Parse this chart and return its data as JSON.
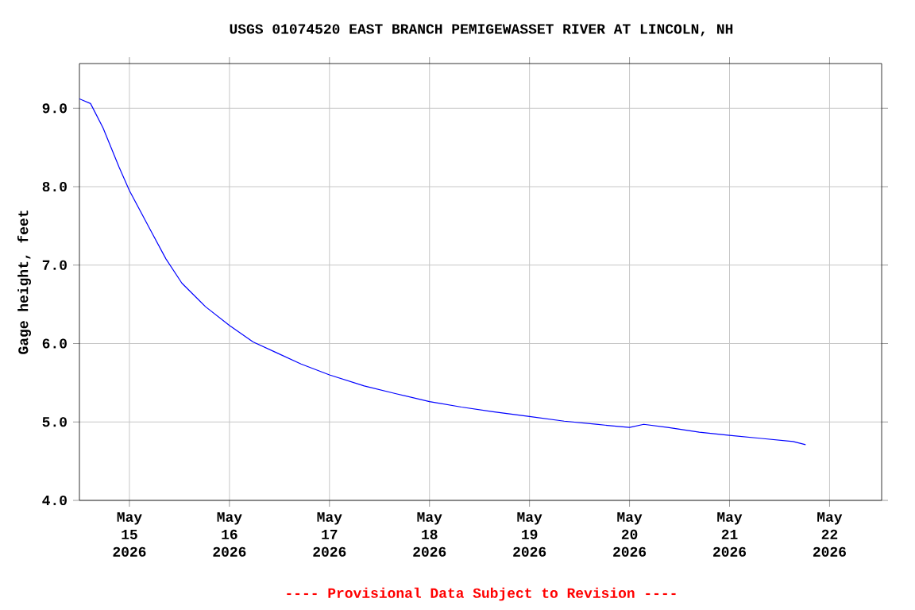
{
  "chart_data": {
    "type": "line",
    "title": "USGS 01074520 EAST BRANCH PEMIGEWASSET RIVER AT LINCOLN, NH",
    "ylabel": "Gage height, feet",
    "annotations": [
      "---- Provisional Data Subject to Revision ----"
    ],
    "xlim": [
      "2026-05-14T12:00",
      "2026-05-22T12:30"
    ],
    "ylim": [
      4.0,
      9.57
    ],
    "xticks": [
      {
        "value": "2026-05-15",
        "label": "May 15 2026"
      },
      {
        "value": "2026-05-16",
        "label": "May 16 2026"
      },
      {
        "value": "2026-05-17",
        "label": "May 17 2026"
      },
      {
        "value": "2026-05-18",
        "label": "May 18 2026"
      },
      {
        "value": "2026-05-19",
        "label": "May 19 2026"
      },
      {
        "value": "2026-05-20",
        "label": "May 20 2026"
      },
      {
        "value": "2026-05-21",
        "label": "May 21 2026"
      },
      {
        "value": "2026-05-22",
        "label": "May 22 2026"
      }
    ],
    "yticks": [
      {
        "value": 4,
        "label": "4.0"
      },
      {
        "value": 5,
        "label": "5.0"
      },
      {
        "value": 6,
        "label": "6.0"
      },
      {
        "value": 7,
        "label": "7.0"
      },
      {
        "value": 8,
        "label": "8.0"
      },
      {
        "value": 9,
        "label": "9.0"
      }
    ],
    "grid": true,
    "line_style": "solid",
    "marker": "none",
    "series": [
      {
        "color": "#0000ff",
        "x": [
          "2026-05-14T12:00",
          "2026-05-14T14:40",
          "2026-05-14T17:40",
          "2026-05-14T21:30",
          "2026-05-15T00:00",
          "2026-05-15T05:00",
          "2026-05-15T08:45",
          "2026-05-15T12:35",
          "2026-05-15T18:15",
          "2026-05-16T00:00",
          "2026-05-16T05:40",
          "2026-05-16T11:25",
          "2026-05-16T17:10",
          "2026-05-17T00:00",
          "2026-05-17T08:20",
          "2026-05-17T16:00",
          "2026-05-18T00:00",
          "2026-05-18T07:40",
          "2026-05-18T15:15",
          "2026-05-19T00:00",
          "2026-05-19T08:20",
          "2026-05-19T16:00",
          "2026-05-20T00:00",
          "2026-05-20T03:25",
          "2026-05-20T09:10",
          "2026-05-20T16:45",
          "2026-05-21T00:00",
          "2026-05-21T07:40",
          "2026-05-21T15:15",
          "2026-05-21T18:15"
        ],
        "values": [
          9.12,
          9.06,
          8.75,
          8.25,
          7.95,
          7.45,
          7.08,
          6.77,
          6.47,
          6.23,
          6.02,
          5.88,
          5.74,
          5.6,
          5.46,
          5.36,
          5.26,
          5.19,
          5.13,
          5.07,
          5.01,
          4.97,
          4.93,
          4.97,
          4.93,
          4.87,
          4.83,
          4.79,
          4.75,
          4.71
        ]
      }
    ]
  }
}
